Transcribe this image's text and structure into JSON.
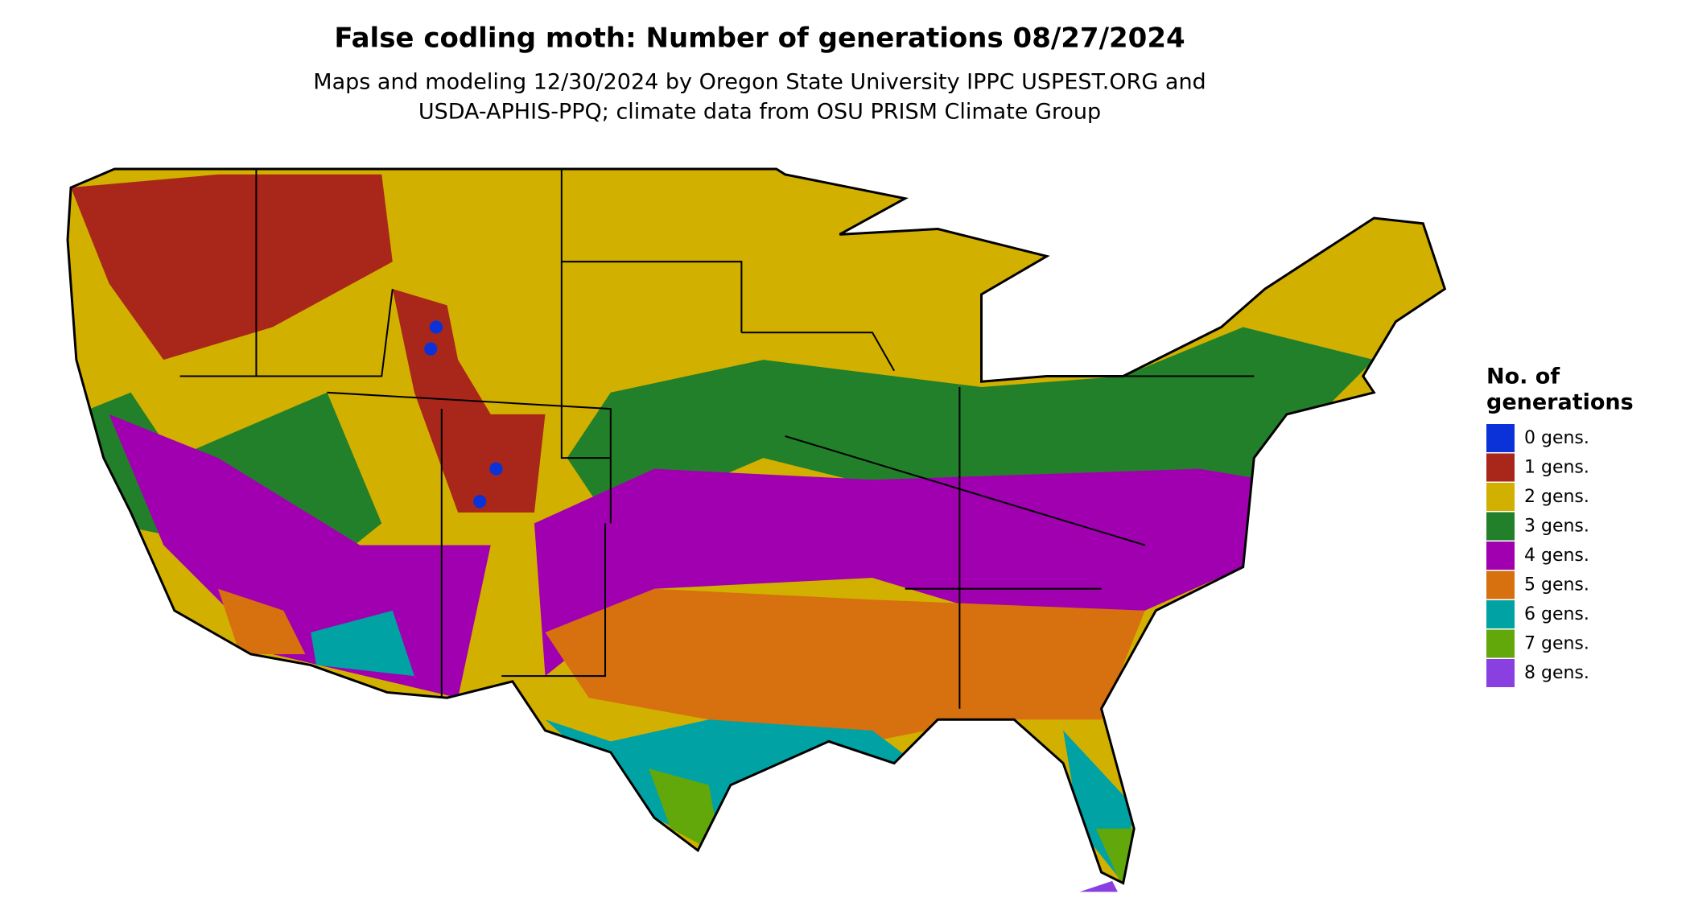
{
  "title": "False codling moth: Number of generations 08/27/2024",
  "subtitle": [
    "Maps and modeling 12/30/2024 by Oregon State University IPPC USPEST.ORG and",
    "USDA-APHIS-PPQ; climate data from OSU PRISM Climate Group"
  ],
  "legend": {
    "title": [
      "No. of",
      "generations"
    ],
    "items": [
      {
        "label": "0 gens.",
        "color": "#0a32d8"
      },
      {
        "label": "1 gens.",
        "color": "#a8271a"
      },
      {
        "label": "2 gens.",
        "color": "#d2b000"
      },
      {
        "label": "3 gens.",
        "color": "#23802a"
      },
      {
        "label": "4 gens.",
        "color": "#a000b0"
      },
      {
        "label": "5 gens.",
        "color": "#d7700f"
      },
      {
        "label": "6 gens.",
        "color": "#00a2a4"
      },
      {
        "label": "7 gens.",
        "color": "#62a80a"
      },
      {
        "label": "8 gens.",
        "color": "#8a3fe0"
      }
    ]
  }
}
